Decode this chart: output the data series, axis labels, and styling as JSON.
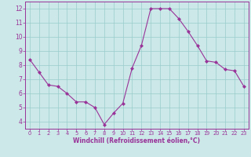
{
  "x": [
    0,
    1,
    2,
    3,
    4,
    5,
    6,
    7,
    8,
    9,
    10,
    11,
    12,
    13,
    14,
    15,
    16,
    17,
    18,
    19,
    20,
    21,
    22,
    23
  ],
  "y": [
    8.4,
    7.5,
    6.6,
    6.5,
    6.0,
    5.4,
    5.4,
    5.0,
    3.8,
    4.6,
    5.3,
    7.8,
    9.4,
    12.0,
    12.0,
    12.0,
    11.3,
    10.4,
    9.4,
    8.3,
    8.2,
    7.7,
    7.6,
    6.5
  ],
  "line_color": "#993399",
  "marker": "D",
  "marker_size": 2,
  "bg_color": "#cce8e8",
  "grid_color": "#99cccc",
  "xlim": [
    -0.5,
    23.5
  ],
  "ylim": [
    3.5,
    12.5
  ],
  "yticks": [
    4,
    5,
    6,
    7,
    8,
    9,
    10,
    11,
    12
  ],
  "xticks": [
    0,
    1,
    2,
    3,
    4,
    5,
    6,
    7,
    8,
    9,
    10,
    11,
    12,
    13,
    14,
    15,
    16,
    17,
    18,
    19,
    20,
    21,
    22,
    23
  ],
  "xlabel": "Windchill (Refroidissement éolien,°C)",
  "tick_color": "#993399",
  "label_color": "#993399",
  "spine_color": "#993399",
  "xlabel_fontsize": 5.5,
  "xtick_fontsize": 4.8,
  "ytick_fontsize": 5.5
}
